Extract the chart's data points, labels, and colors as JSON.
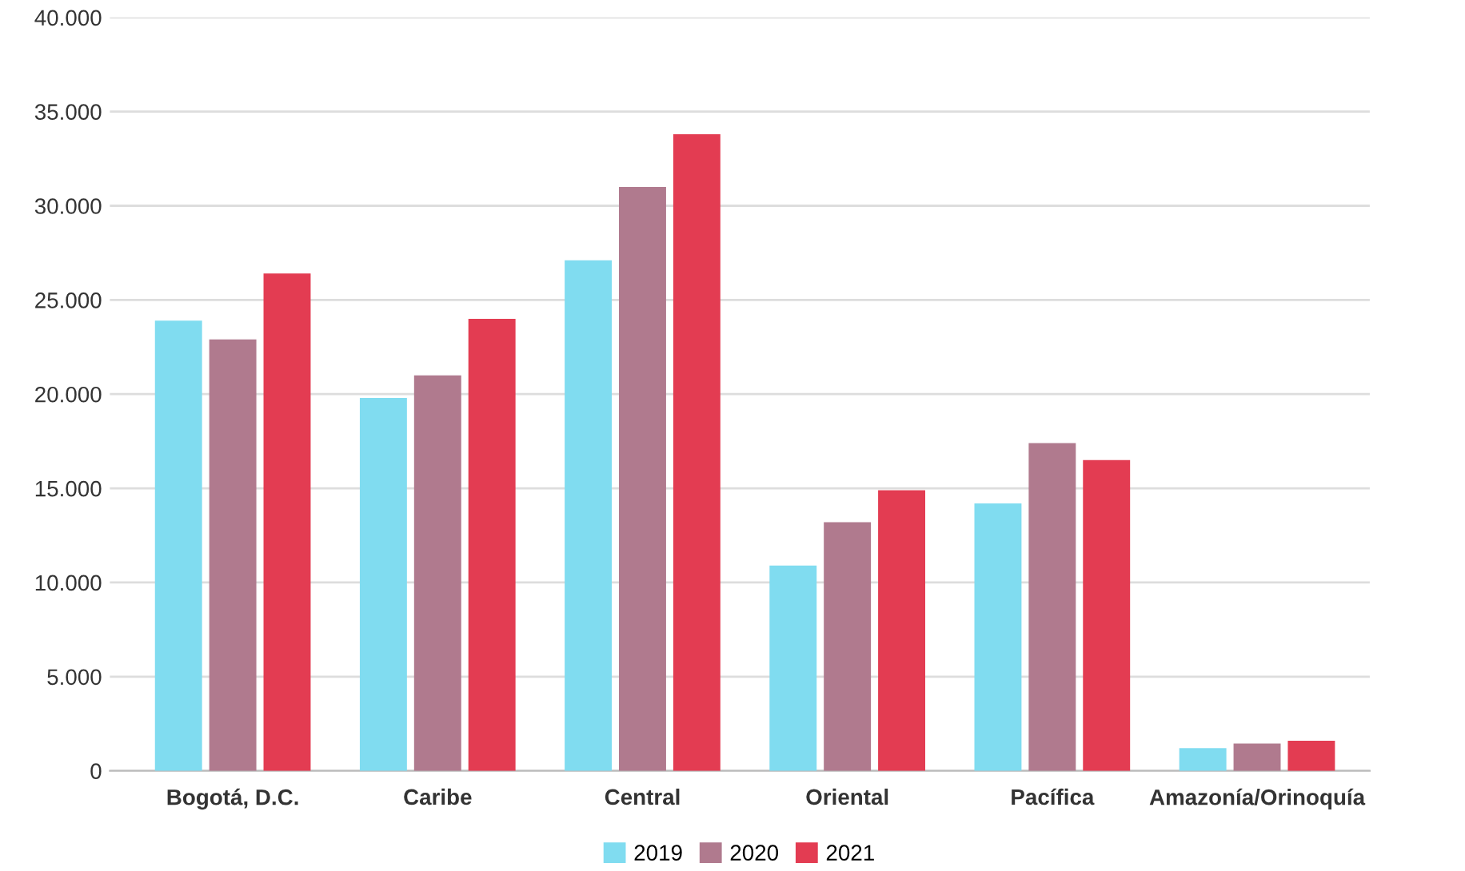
{
  "chart_data": {
    "type": "bar",
    "categories": [
      "Bogotá, D.C.",
      "Caribe",
      "Central",
      "Oriental",
      "Pacífica",
      "Amazonía/Orinoquía"
    ],
    "series": [
      {
        "name": "2019",
        "color": "#80dcf0",
        "values": [
          23900,
          19800,
          27100,
          10900,
          14200,
          1200
        ]
      },
      {
        "name": "2020",
        "color": "#b07a8e",
        "values": [
          22900,
          21000,
          31000,
          13200,
          17400,
          1450
        ]
      },
      {
        "name": "2021",
        "color": "#e33c52",
        "values": [
          26400,
          24000,
          33800,
          14900,
          16500,
          1600
        ]
      }
    ],
    "ylim": [
      0,
      40000
    ],
    "yticks": [
      0,
      {
        "value": 5000,
        "label": "5.000"
      },
      {
        "value": 10000,
        "label": "10.000"
      },
      {
        "value": 15000,
        "label": "15.000"
      },
      {
        "value": 20000,
        "label": "20.000"
      },
      {
        "value": 25000,
        "label": "25.000"
      },
      {
        "value": 30000,
        "label": "30.000"
      },
      {
        "value": 35000,
        "label": "35.000"
      },
      {
        "value": 40000,
        "label": "40.000"
      }
    ],
    "grid": "y",
    "legend": "bottom"
  }
}
